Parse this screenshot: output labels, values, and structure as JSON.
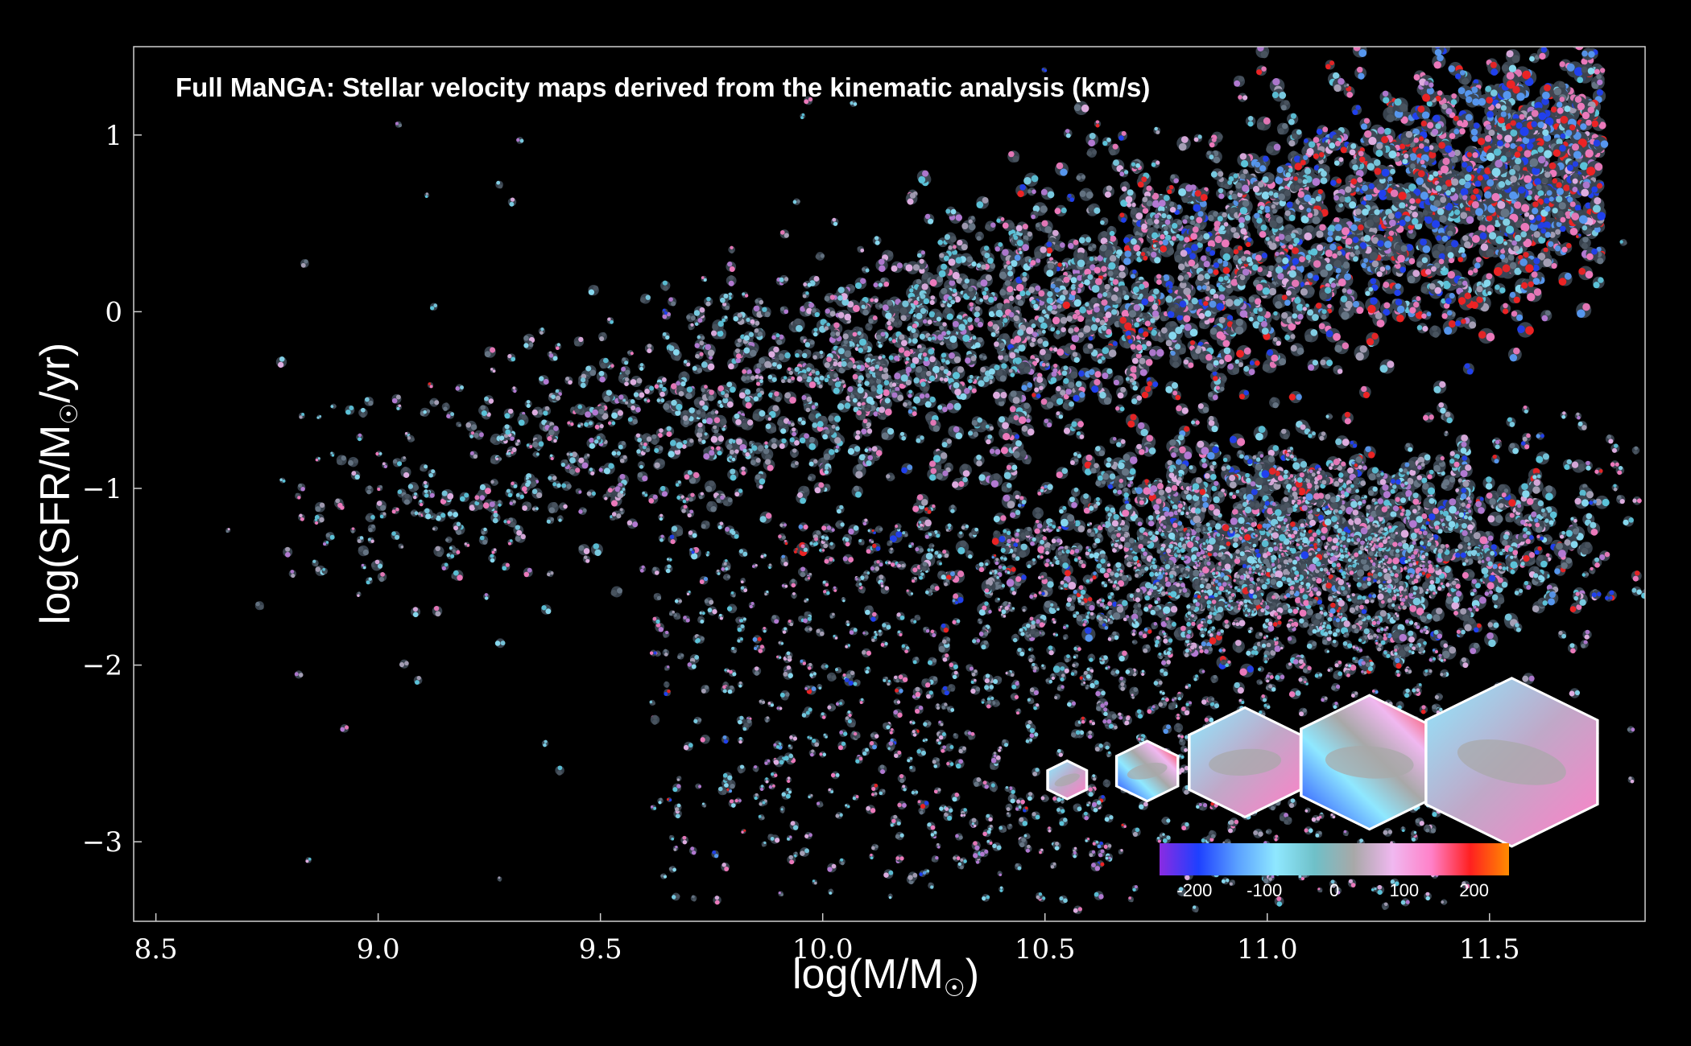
{
  "chart_data": {
    "type": "scatter",
    "title": "Full MaNGA: Stellar velocity maps derived from the kinematic analysis (km/s)",
    "xlabel": "log(M/M",
    "xlabel_sub": "☉",
    "xlabel_close": ")",
    "ylabel": "log(SFR/M",
    "ylabel_sub": "☉",
    "ylabel_close": "/yr)",
    "xlim": [
      8.45,
      11.85
    ],
    "ylim": [
      -3.45,
      1.5
    ],
    "xticks": [
      8.5,
      9.0,
      9.5,
      10.0,
      10.5,
      11.0,
      11.5
    ],
    "xtick_labels": [
      "8.5",
      "9.0",
      "9.5",
      "10.0",
      "10.5",
      "11.0",
      "11.5"
    ],
    "yticks": [
      1,
      0,
      -1,
      -2,
      -3
    ],
    "ytick_labels": [
      "1",
      "0",
      "−1",
      "−2",
      "−3"
    ],
    "grid": false,
    "background": "#000000",
    "markers": "stellar velocity map thumbnails (one per galaxy)",
    "main_sequence": {
      "slope": 0.72,
      "intercept_at_10": -0.35,
      "scatter": 0.35
    },
    "red_sequence": {
      "center_x": 11.1,
      "center_y": -1.3,
      "spread_x": 0.35,
      "spread_y": 0.3
    },
    "green_valley_cloud": {
      "x_range": [
        9.6,
        11.4
      ],
      "y_range": [
        -3.4,
        -1.2
      ]
    },
    "sample_thumbnails": [
      {
        "x": 10.55,
        "y": -2.65,
        "size": "smallest"
      },
      {
        "x": 10.73,
        "y": -2.6,
        "size": "small"
      },
      {
        "x": 10.95,
        "y": -2.55,
        "size": "medium"
      },
      {
        "x": 11.23,
        "y": -2.55,
        "size": "large"
      },
      {
        "x": 11.55,
        "y": -2.55,
        "size": "largest"
      }
    ],
    "colorbar": {
      "ticks": [
        -200,
        -100,
        0,
        100,
        200
      ],
      "tick_labels": [
        "-200",
        "-100",
        "0",
        "100",
        "200"
      ],
      "range": [
        -250,
        250
      ],
      "colors": [
        "#8a2be2",
        "#1e40ff",
        "#5aa0ff",
        "#8fe8ff",
        "#6fc0c8",
        "#a8a8a8",
        "#f0b8f0",
        "#ff80c8",
        "#ff2020",
        "#ff8c00"
      ]
    }
  }
}
